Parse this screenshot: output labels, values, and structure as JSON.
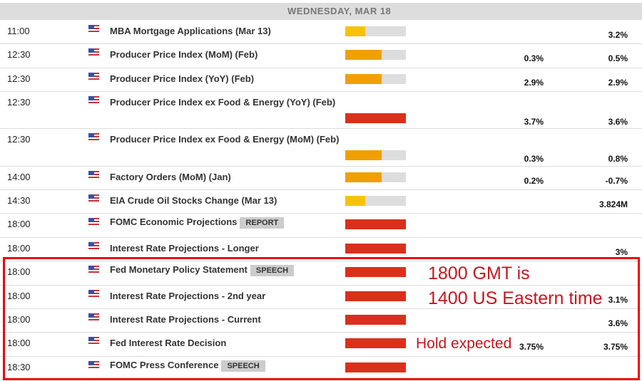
{
  "header": {
    "date": "WEDNESDAY, MAR 18"
  },
  "colors": {
    "low": "#f5c400",
    "medium": "#f0a000",
    "high": "#d9301c",
    "annotation": "#c8161d",
    "highlight_box": "#e00000"
  },
  "events": [
    {
      "time": "11:00",
      "flag": "us-flag-icon",
      "title": "MBA Mortgage Applications (Mar 13)",
      "impact": 0.33,
      "forecast": "",
      "previous": "3.2%"
    },
    {
      "time": "12:30",
      "flag": "us-flag-icon",
      "title": "Producer Price Index (MoM) (Feb)",
      "impact": 0.6,
      "forecast": "0.3%",
      "previous": "0.5%"
    },
    {
      "time": "12:30",
      "flag": "us-flag-icon",
      "title": "Producer Price Index (YoY) (Feb)",
      "impact": 0.6,
      "forecast": "2.9%",
      "previous": "2.9%"
    },
    {
      "time": "12:30",
      "flag": "us-flag-icon",
      "title": "Producer Price Index ex Food & Energy (YoY) (Feb)",
      "impact": 1,
      "forecast": "3.7%",
      "previous": "3.6%"
    },
    {
      "time": "12:30",
      "flag": "us-flag-icon",
      "title": "Producer Price Index ex Food & Energy (MoM) (Feb)",
      "impact": 0.6,
      "forecast": "0.3%",
      "previous": "0.8%"
    },
    {
      "time": "14:00",
      "flag": "us-flag-icon",
      "title": "Factory Orders (MoM) (Jan)",
      "impact": 0.6,
      "forecast": "0.2%",
      "previous": "-0.7%"
    },
    {
      "time": "14:30",
      "flag": "us-flag-icon",
      "title": "EIA Crude Oil Stocks Change (Mar 13)",
      "impact": 0.33,
      "forecast": "",
      "previous": "3.824M"
    },
    {
      "time": "18:00",
      "flag": "us-flag-icon",
      "title": "FOMC Economic Projections",
      "badge": "REPORT",
      "impact": 1,
      "forecast": "",
      "previous": ""
    },
    {
      "time": "18:00",
      "flag": "us-flag-icon",
      "title": "Interest Rate Projections - Longer",
      "impact": 1,
      "forecast": "",
      "previous": "3%"
    },
    {
      "time": "18:00",
      "flag": "us-flag-icon",
      "title": "Fed Monetary Policy Statement",
      "badge": "SPEECH",
      "impact": 1,
      "forecast": "",
      "previous": ""
    },
    {
      "time": "18:00",
      "flag": "us-flag-icon",
      "title": "Interest Rate Projections - 2nd year",
      "impact": 1,
      "forecast": "",
      "previous": "3.1%"
    },
    {
      "time": "18:00",
      "flag": "us-flag-icon",
      "title": "Interest Rate Projections - Current",
      "impact": 1,
      "forecast": "",
      "previous": "3.6%"
    },
    {
      "time": "18:00",
      "flag": "us-flag-icon",
      "title": "Fed Interest Rate Decision",
      "impact": 1,
      "forecast": "3.75%",
      "previous": "3.75%"
    },
    {
      "time": "18:30",
      "flag": "us-flag-icon",
      "title": "FOMC Press Conference",
      "badge": "SPEECH",
      "impact": 1,
      "forecast": "",
      "previous": ""
    }
  ],
  "annotations": {
    "line1": "1800 GMT is",
    "line2": "1400 US Eastern time",
    "line3": "Hold expected"
  }
}
